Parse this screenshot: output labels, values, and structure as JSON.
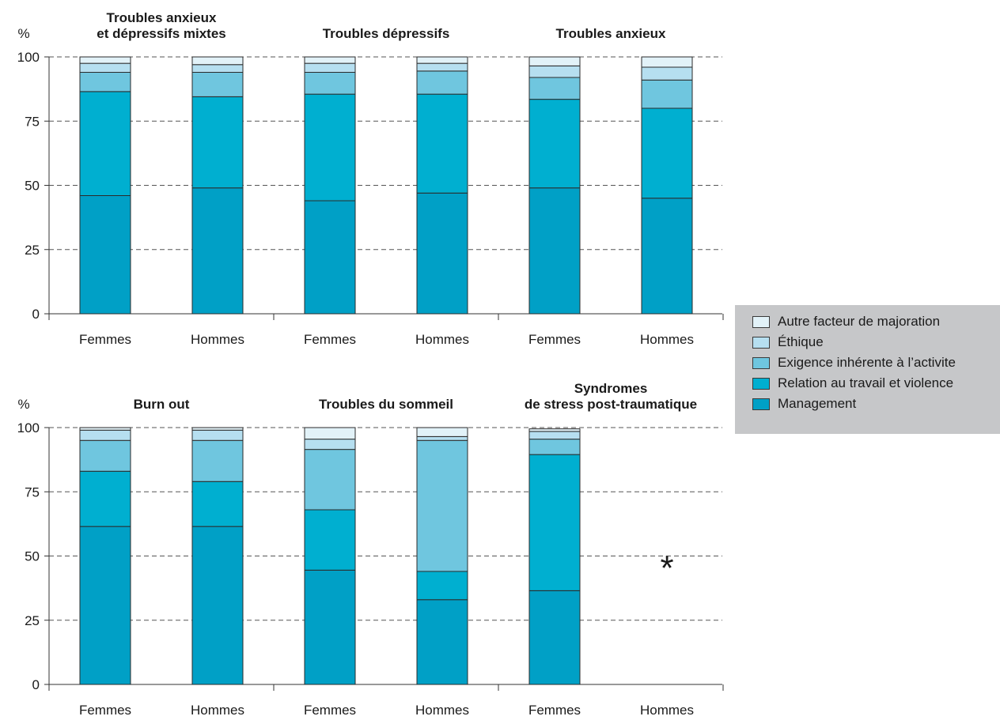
{
  "legend": {
    "items": [
      {
        "label": "Autre facteur de majoration",
        "color": "#e2f2f8"
      },
      {
        "label": "Éthique",
        "color": "#b6dff0"
      },
      {
        "label": "Exigence inhérente à l’activite",
        "color": "#6fc6df"
      },
      {
        "label": "Relation au travail et violence",
        "color": "#00afd0"
      },
      {
        "label": "Management",
        "color": "#00a0c6"
      }
    ]
  },
  "chart_data": [
    {
      "type": "bar",
      "stacked": true,
      "ylabel": "%",
      "ylim": [
        0,
        100
      ],
      "yticks": [
        0,
        25,
        50,
        75,
        100
      ],
      "grid": true,
      "group_titles": [
        [
          "Troubles anxieux",
          "et dépressifs mixtes"
        ],
        [
          "Troubles dépressifs"
        ],
        [
          "Troubles anxieux"
        ]
      ],
      "categories": [
        "Femmes",
        "Hommes",
        "Femmes",
        "Hommes",
        "Femmes",
        "Hommes"
      ],
      "series": [
        {
          "name": "Management",
          "values": [
            46,
            49,
            44,
            47,
            49,
            45
          ]
        },
        {
          "name": "Relation au travail et violence",
          "values": [
            40.5,
            35.5,
            41.5,
            38.5,
            34.5,
            35
          ]
        },
        {
          "name": "Exigence inhérente à l’activite",
          "values": [
            7.5,
            9.5,
            8.5,
            9,
            8.5,
            11
          ]
        },
        {
          "name": "Éthique",
          "values": [
            3.5,
            3,
            3.5,
            3,
            4.5,
            5
          ]
        },
        {
          "name": "Autre facteur de majoration",
          "values": [
            2.5,
            3,
            2.5,
            2.5,
            3.5,
            4
          ]
        }
      ]
    },
    {
      "type": "bar",
      "stacked": true,
      "ylabel": "%",
      "ylim": [
        0,
        100
      ],
      "yticks": [
        0,
        25,
        50,
        75,
        100
      ],
      "grid": true,
      "group_titles": [
        [
          "Burn out"
        ],
        [
          "Troubles du sommeil"
        ],
        [
          "Syndromes",
          "de stress post-traumatique"
        ]
      ],
      "categories": [
        "Femmes",
        "Hommes",
        "Femmes",
        "Hommes",
        "Femmes",
        "Hommes"
      ],
      "annotations": [
        {
          "text": "*",
          "category_index": 5,
          "y": 50
        }
      ],
      "series": [
        {
          "name": "Management",
          "values": [
            61.5,
            61.5,
            44.5,
            33,
            36.5,
            null
          ]
        },
        {
          "name": "Relation au travail et violence",
          "values": [
            21.5,
            17.5,
            23.5,
            11,
            53,
            null
          ]
        },
        {
          "name": "Exigence inhérente à l’activite",
          "values": [
            12,
            16,
            23.5,
            51,
            6,
            null
          ]
        },
        {
          "name": "Éthique",
          "values": [
            4,
            4,
            4,
            1.5,
            3,
            null
          ]
        },
        {
          "name": "Autre facteur de majoration",
          "values": [
            1,
            1,
            4.5,
            3.5,
            1,
            null
          ]
        }
      ]
    }
  ]
}
